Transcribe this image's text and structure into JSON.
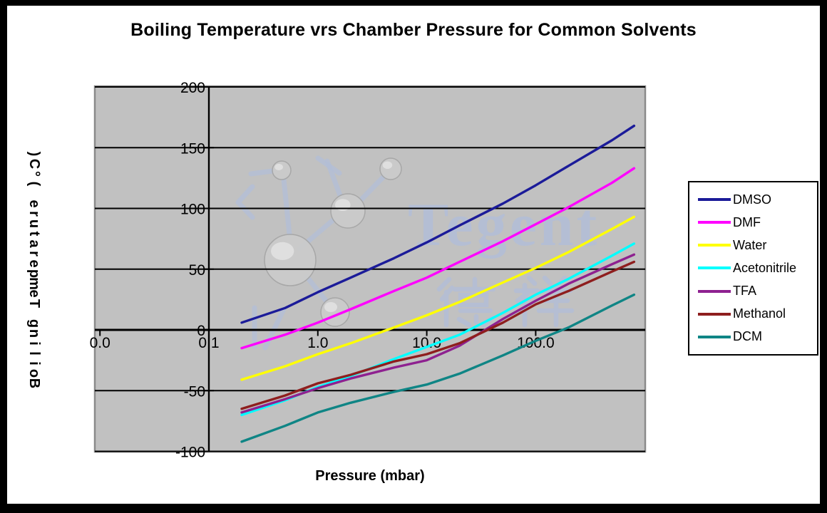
{
  "window": {
    "frame_color": "#000000",
    "background": "#ffffff"
  },
  "watermark": {
    "brand": "Tegent",
    "cjk_text": "德祥",
    "color": "#b2bed9"
  },
  "chart_data": {
    "type": "line",
    "title": "Boiling Temperature vrs Chamber Pressure for Common Solvents",
    "xlabel": "Pressure (mbar)",
    "ylabel": "Boiling Temperature (°C)",
    "x_scale": "log",
    "xlim": [
      0.01,
      1000
    ],
    "ylim": [
      -100,
      200
    ],
    "grid": "horizontal",
    "plot_background": "#c1c1c1",
    "plot_border_color": "#8a8a8a",
    "gridline_color": "#000000",
    "legend_position": "right",
    "x_ticks": [
      {
        "value": 0.01,
        "label": "0.0"
      },
      {
        "value": 0.1,
        "label": "0.1"
      },
      {
        "value": 1,
        "label": "1.0"
      },
      {
        "value": 10,
        "label": "10.0"
      },
      {
        "value": 100,
        "label": "100.0"
      }
    ],
    "y_ticks": [
      200,
      150,
      100,
      50,
      0,
      -50,
      -100
    ],
    "x": [
      0.2,
      0.5,
      1,
      2,
      5,
      10,
      20,
      50,
      100,
      200,
      500,
      800
    ],
    "series": [
      {
        "name": "DMSO",
        "color": "#1b1b99",
        "values": [
          6,
          18,
          31,
          43,
          59,
          72,
          86,
          104,
          119,
          135,
          156,
          168
        ]
      },
      {
        "name": "DMF",
        "color": "#ff00ff",
        "values": [
          -15,
          -4,
          6,
          17,
          32,
          43,
          56,
          73,
          87,
          101,
          121,
          133
        ]
      },
      {
        "name": "Water",
        "color": "#ffff00",
        "values": [
          -41,
          -30,
          -20,
          -11,
          2,
          12,
          23,
          39,
          51,
          64,
          83,
          93
        ]
      },
      {
        "name": "Acetonitrile",
        "color": "#00ffff",
        "values": [
          -70,
          -58,
          -47,
          -38,
          -24,
          -14,
          -4,
          14,
          29,
          42,
          61,
          71
        ]
      },
      {
        "name": "TFA",
        "color": "#8e2190",
        "values": [
          -68,
          -57,
          -48,
          -40,
          -31,
          -25,
          -13,
          9,
          24,
          38,
          54,
          62
        ]
      },
      {
        "name": "Methanol",
        "color": "#8e1e1e",
        "values": [
          -65,
          -54,
          -44,
          -37,
          -26,
          -20,
          -11,
          6,
          21,
          32,
          48,
          56
        ]
      },
      {
        "name": "DCM",
        "color": "#0f8585",
        "values": [
          -92,
          -79,
          -68,
          -60,
          -51,
          -45,
          -36,
          -21,
          -9,
          2,
          20,
          29
        ]
      }
    ]
  }
}
